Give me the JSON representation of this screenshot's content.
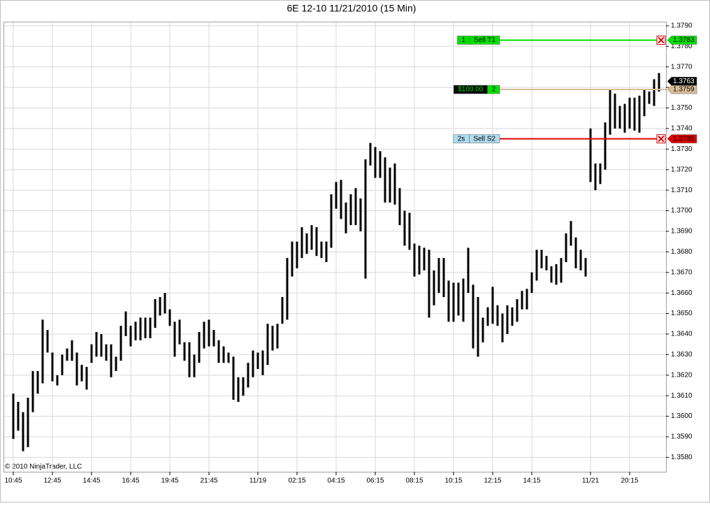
{
  "chart_data": {
    "type": "hilo",
    "title": "6E 12-10  11/21/2010 (15 Min)",
    "copyright": "© 2010 NinjaTrader, LLC",
    "categories": [
      "10:45",
      null,
      null,
      null,
      null,
      null,
      null,
      null,
      "12:45",
      null,
      null,
      null,
      null,
      null,
      null,
      null,
      "14:45",
      null,
      null,
      null,
      null,
      null,
      null,
      null,
      "16:45",
      null,
      null,
      null,
      null,
      null,
      null,
      null,
      "19:45",
      null,
      null,
      null,
      null,
      null,
      null,
      null,
      "21:45",
      null,
      null,
      null,
      null,
      null,
      null,
      null,
      null,
      null,
      "11/19",
      null,
      null,
      null,
      null,
      null,
      null,
      null,
      "02:15",
      null,
      null,
      null,
      null,
      null,
      null,
      null,
      "04:15",
      null,
      null,
      null,
      null,
      null,
      null,
      null,
      "06:15",
      null,
      null,
      null,
      null,
      null,
      null,
      null,
      "08:15",
      null,
      null,
      null,
      null,
      null,
      null,
      null,
      "10:15",
      null,
      null,
      null,
      null,
      null,
      null,
      null,
      "12:15",
      null,
      null,
      null,
      null,
      null,
      null,
      null,
      "14:15",
      null,
      null,
      null,
      null,
      null,
      null,
      null,
      null,
      null,
      null,
      null,
      "11/21",
      null,
      null,
      null,
      null,
      null,
      null,
      null,
      "20:15",
      null,
      null,
      null,
      null,
      null,
      null
    ],
    "high": [
      1.3611,
      1.3607,
      1.3602,
      1.3609,
      1.3622,
      1.3622,
      1.3647,
      1.3642,
      1.3631,
      1.362,
      1.363,
      1.3633,
      1.3637,
      1.3631,
      1.3625,
      1.3624,
      1.3635,
      1.3641,
      1.364,
      1.3635,
      1.3635,
      1.3629,
      1.3644,
      1.3651,
      1.3644,
      1.3646,
      1.3648,
      1.3648,
      1.3648,
      1.3657,
      1.3658,
      1.366,
      1.3652,
      1.3646,
      1.3647,
      1.3636,
      1.3636,
      1.363,
      1.3641,
      1.3646,
      1.3647,
      1.3642,
      1.3637,
      1.3634,
      1.3631,
      1.3629,
      1.3619,
      1.3619,
      1.3626,
      1.3632,
      1.3631,
      1.3632,
      1.3645,
      1.3644,
      1.3645,
      1.3658,
      1.3677,
      1.3685,
      1.3685,
      1.3692,
      1.3689,
      1.3693,
      1.3692,
      1.3685,
      1.3685,
      1.3708,
      1.3714,
      1.3715,
      1.3704,
      1.3708,
      1.3711,
      1.3706,
      1.3725,
      1.3733,
      1.3731,
      1.3729,
      1.3726,
      1.3721,
      1.3723,
      1.3711,
      1.37,
      1.3699,
      1.3684,
      1.3683,
      1.3682,
      1.3681,
      1.3671,
      1.3677,
      1.3677,
      1.3666,
      1.3665,
      1.3665,
      1.3667,
      1.3682,
      1.3664,
      1.3658,
      1.3648,
      1.3653,
      1.3663,
      1.3654,
      1.365,
      1.3654,
      1.3653,
      1.3657,
      1.3661,
      1.3662,
      1.367,
      1.3681,
      1.3681,
      1.3678,
      1.3673,
      1.3674,
      1.3677,
      1.3689,
      1.3695,
      1.3687,
      1.3681,
      1.3677,
      1.374,
      1.3723,
      1.3723,
      1.3743,
      1.3759,
      1.3757,
      1.3751,
      1.3752,
      1.3755,
      1.3755,
      1.3756,
      1.3759,
      1.3758,
      1.3764,
      1.3767
    ],
    "low": [
      1.3589,
      1.3593,
      1.3583,
      1.3585,
      1.3602,
      1.3611,
      1.3616,
      1.3631,
      1.3617,
      1.3615,
      1.362,
      1.3627,
      1.3627,
      1.3615,
      1.3617,
      1.3613,
      1.3626,
      1.3629,
      1.3629,
      1.3627,
      1.3619,
      1.3622,
      1.3627,
      1.3639,
      1.3634,
      1.3637,
      1.3637,
      1.3638,
      1.3638,
      1.3643,
      1.3649,
      1.365,
      1.3644,
      1.3629,
      1.3635,
      1.3627,
      1.3619,
      1.3619,
      1.3626,
      1.3633,
      1.3634,
      1.3634,
      1.3626,
      1.3626,
      1.3626,
      1.3608,
      1.3607,
      1.361,
      1.3614,
      1.3619,
      1.3623,
      1.362,
      1.3625,
      1.3632,
      1.3633,
      1.3645,
      1.3647,
      1.3668,
      1.3672,
      1.3677,
      1.3679,
      1.3681,
      1.3678,
      1.3677,
      1.3675,
      1.3682,
      1.3701,
      1.3696,
      1.3689,
      1.3693,
      1.3693,
      1.369,
      1.3667,
      1.3722,
      1.3716,
      1.3716,
      1.3704,
      1.3704,
      1.3703,
      1.3693,
      1.3683,
      1.3681,
      1.3668,
      1.3669,
      1.3671,
      1.3648,
      1.3654,
      1.366,
      1.3658,
      1.3646,
      1.3646,
      1.3649,
      1.3646,
      1.366,
      1.3633,
      1.3629,
      1.3636,
      1.3644,
      1.3645,
      1.3644,
      1.3636,
      1.364,
      1.3644,
      1.3646,
      1.3652,
      1.3652,
      1.366,
      1.3666,
      1.3672,
      1.3671,
      1.3665,
      1.3664,
      1.3665,
      1.3675,
      1.3683,
      1.3672,
      1.3671,
      1.3668,
      1.3714,
      1.371,
      1.3713,
      1.372,
      1.3737,
      1.374,
      1.374,
      1.3738,
      1.374,
      1.3739,
      1.3738,
      1.3746,
      1.3752,
      1.3751,
      1.3758
    ],
    "bar_color": "#000000",
    "ylim": [
      1.3573,
      1.3792
    ],
    "yticks": [
      {
        "value": 1.358,
        "label": "1.3580"
      },
      {
        "value": 1.359,
        "label": "1.3590"
      },
      {
        "value": 1.36,
        "label": "1.3600"
      },
      {
        "value": 1.361,
        "label": "1.3610"
      },
      {
        "value": 1.362,
        "label": "1.3620"
      },
      {
        "value": 1.363,
        "label": "1.3630"
      },
      {
        "value": 1.364,
        "label": "1.3640"
      },
      {
        "value": 1.365,
        "label": "1.3650"
      },
      {
        "value": 1.366,
        "label": "1.3660"
      },
      {
        "value": 1.367,
        "label": "1.3670"
      },
      {
        "value": 1.368,
        "label": "1.3680"
      },
      {
        "value": 1.369,
        "label": "1.3690"
      },
      {
        "value": 1.37,
        "label": "1.3700"
      },
      {
        "value": 1.371,
        "label": "1.3710"
      },
      {
        "value": 1.372,
        "label": "1.3720"
      },
      {
        "value": 1.373,
        "label": "1.3730"
      },
      {
        "value": 1.374,
        "label": "1.3740"
      },
      {
        "value": 1.375,
        "label": "1.3750"
      },
      {
        "value": 1.376,
        "label": "1.3760"
      },
      {
        "value": 1.377,
        "label": "1.3770"
      },
      {
        "value": 1.378,
        "label": "1.3780"
      },
      {
        "value": 1.379,
        "label": "1.3790"
      }
    ],
    "grid": true,
    "last_price": 1.3763,
    "orders": [
      {
        "labels": [
          "1",
          "Sell T1"
        ],
        "label_colors": [
          "#00e000",
          "#00e000"
        ],
        "label_text_colors": [
          "#000000",
          "#000000"
        ],
        "price": 1.3783,
        "color": "#00e000",
        "cancel": true
      },
      {
        "labels": [
          "$100.00",
          "2"
        ],
        "label_colors": [
          "#000000",
          "#00e000"
        ],
        "label_text_colors": [
          "#00e000",
          "#000000"
        ],
        "price": 1.3759,
        "color": "#d9bd97",
        "cancel": false
      },
      {
        "labels": [
          "2s",
          "Sell S2"
        ],
        "label_colors": [
          "#b0dcf0",
          "#b0dcf0"
        ],
        "label_text_colors": [
          "#000000",
          "#000000"
        ],
        "price": 1.3735,
        "color": "#e00000",
        "cancel": true
      }
    ]
  }
}
